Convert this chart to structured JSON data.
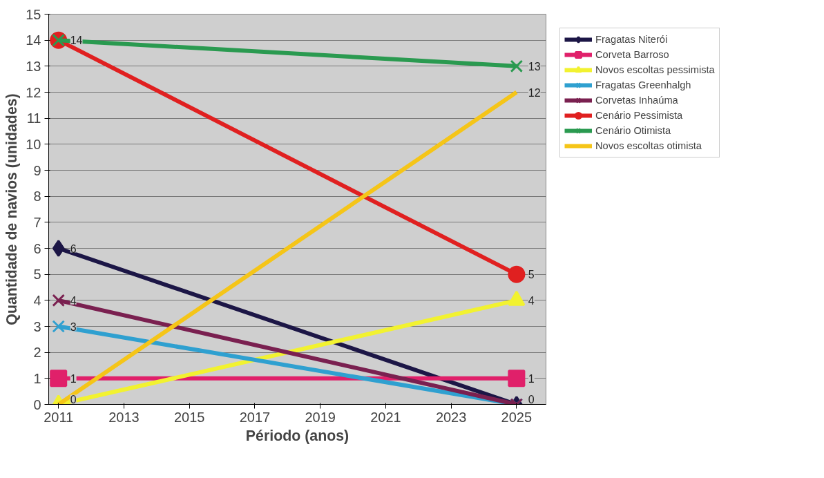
{
  "chart_data": {
    "type": "line",
    "xlabel": "Périodo (anos)",
    "ylabel": "Quantidade de navios (unidades)",
    "x": [
      2011,
      2025
    ],
    "series": [
      {
        "name": "Fragatas Niterói",
        "color": "#1c1646",
        "marker": "diamond",
        "values": [
          6,
          0
        ],
        "value_labels": [
          "6",
          "0"
        ]
      },
      {
        "name": "Corveta Barroso",
        "color": "#e0206a",
        "marker": "square",
        "values": [
          1,
          1
        ],
        "value_labels": [
          "1",
          "1"
        ]
      },
      {
        "name": "Novos escoltas pessimista",
        "color": "#f2f230",
        "marker": "triangle",
        "values": [
          0,
          4
        ],
        "value_labels": [
          "0",
          "4"
        ]
      },
      {
        "name": "Fragatas Greenhalgh",
        "color": "#2fa0d0",
        "marker": "cross",
        "values": [
          3,
          0
        ],
        "value_labels": [
          "3",
          null
        ]
      },
      {
        "name": "Corvetas Inhaúma",
        "color": "#7a2050",
        "marker": "cross",
        "values": [
          4,
          0
        ],
        "value_labels": [
          "4",
          null
        ]
      },
      {
        "name": "Cenário Pessimista",
        "color": "#e02020",
        "marker": "circle",
        "values": [
          14,
          5
        ],
        "value_labels": [
          "14",
          "5"
        ]
      },
      {
        "name": "Cenário Otimista",
        "color": "#2a9a50",
        "marker": "cross",
        "values": [
          14,
          13
        ],
        "value_labels": [
          null,
          "13"
        ]
      },
      {
        "name": "Novos escoltas otimista",
        "color": "#f5c518",
        "marker": "none",
        "values": [
          0,
          12
        ],
        "value_labels": [
          null,
          "12"
        ]
      }
    ],
    "xlim": [
      2010.7,
      2025.9
    ],
    "xticks": [
      2011,
      2013,
      2015,
      2017,
      2019,
      2021,
      2023,
      2025
    ],
    "ylim": [
      0,
      15
    ],
    "yticks": [
      0,
      1,
      2,
      3,
      4,
      5,
      6,
      7,
      8,
      9,
      10,
      11,
      12,
      13,
      14,
      15
    ],
    "grid": "y",
    "legend": "right",
    "line_style": "solid"
  }
}
